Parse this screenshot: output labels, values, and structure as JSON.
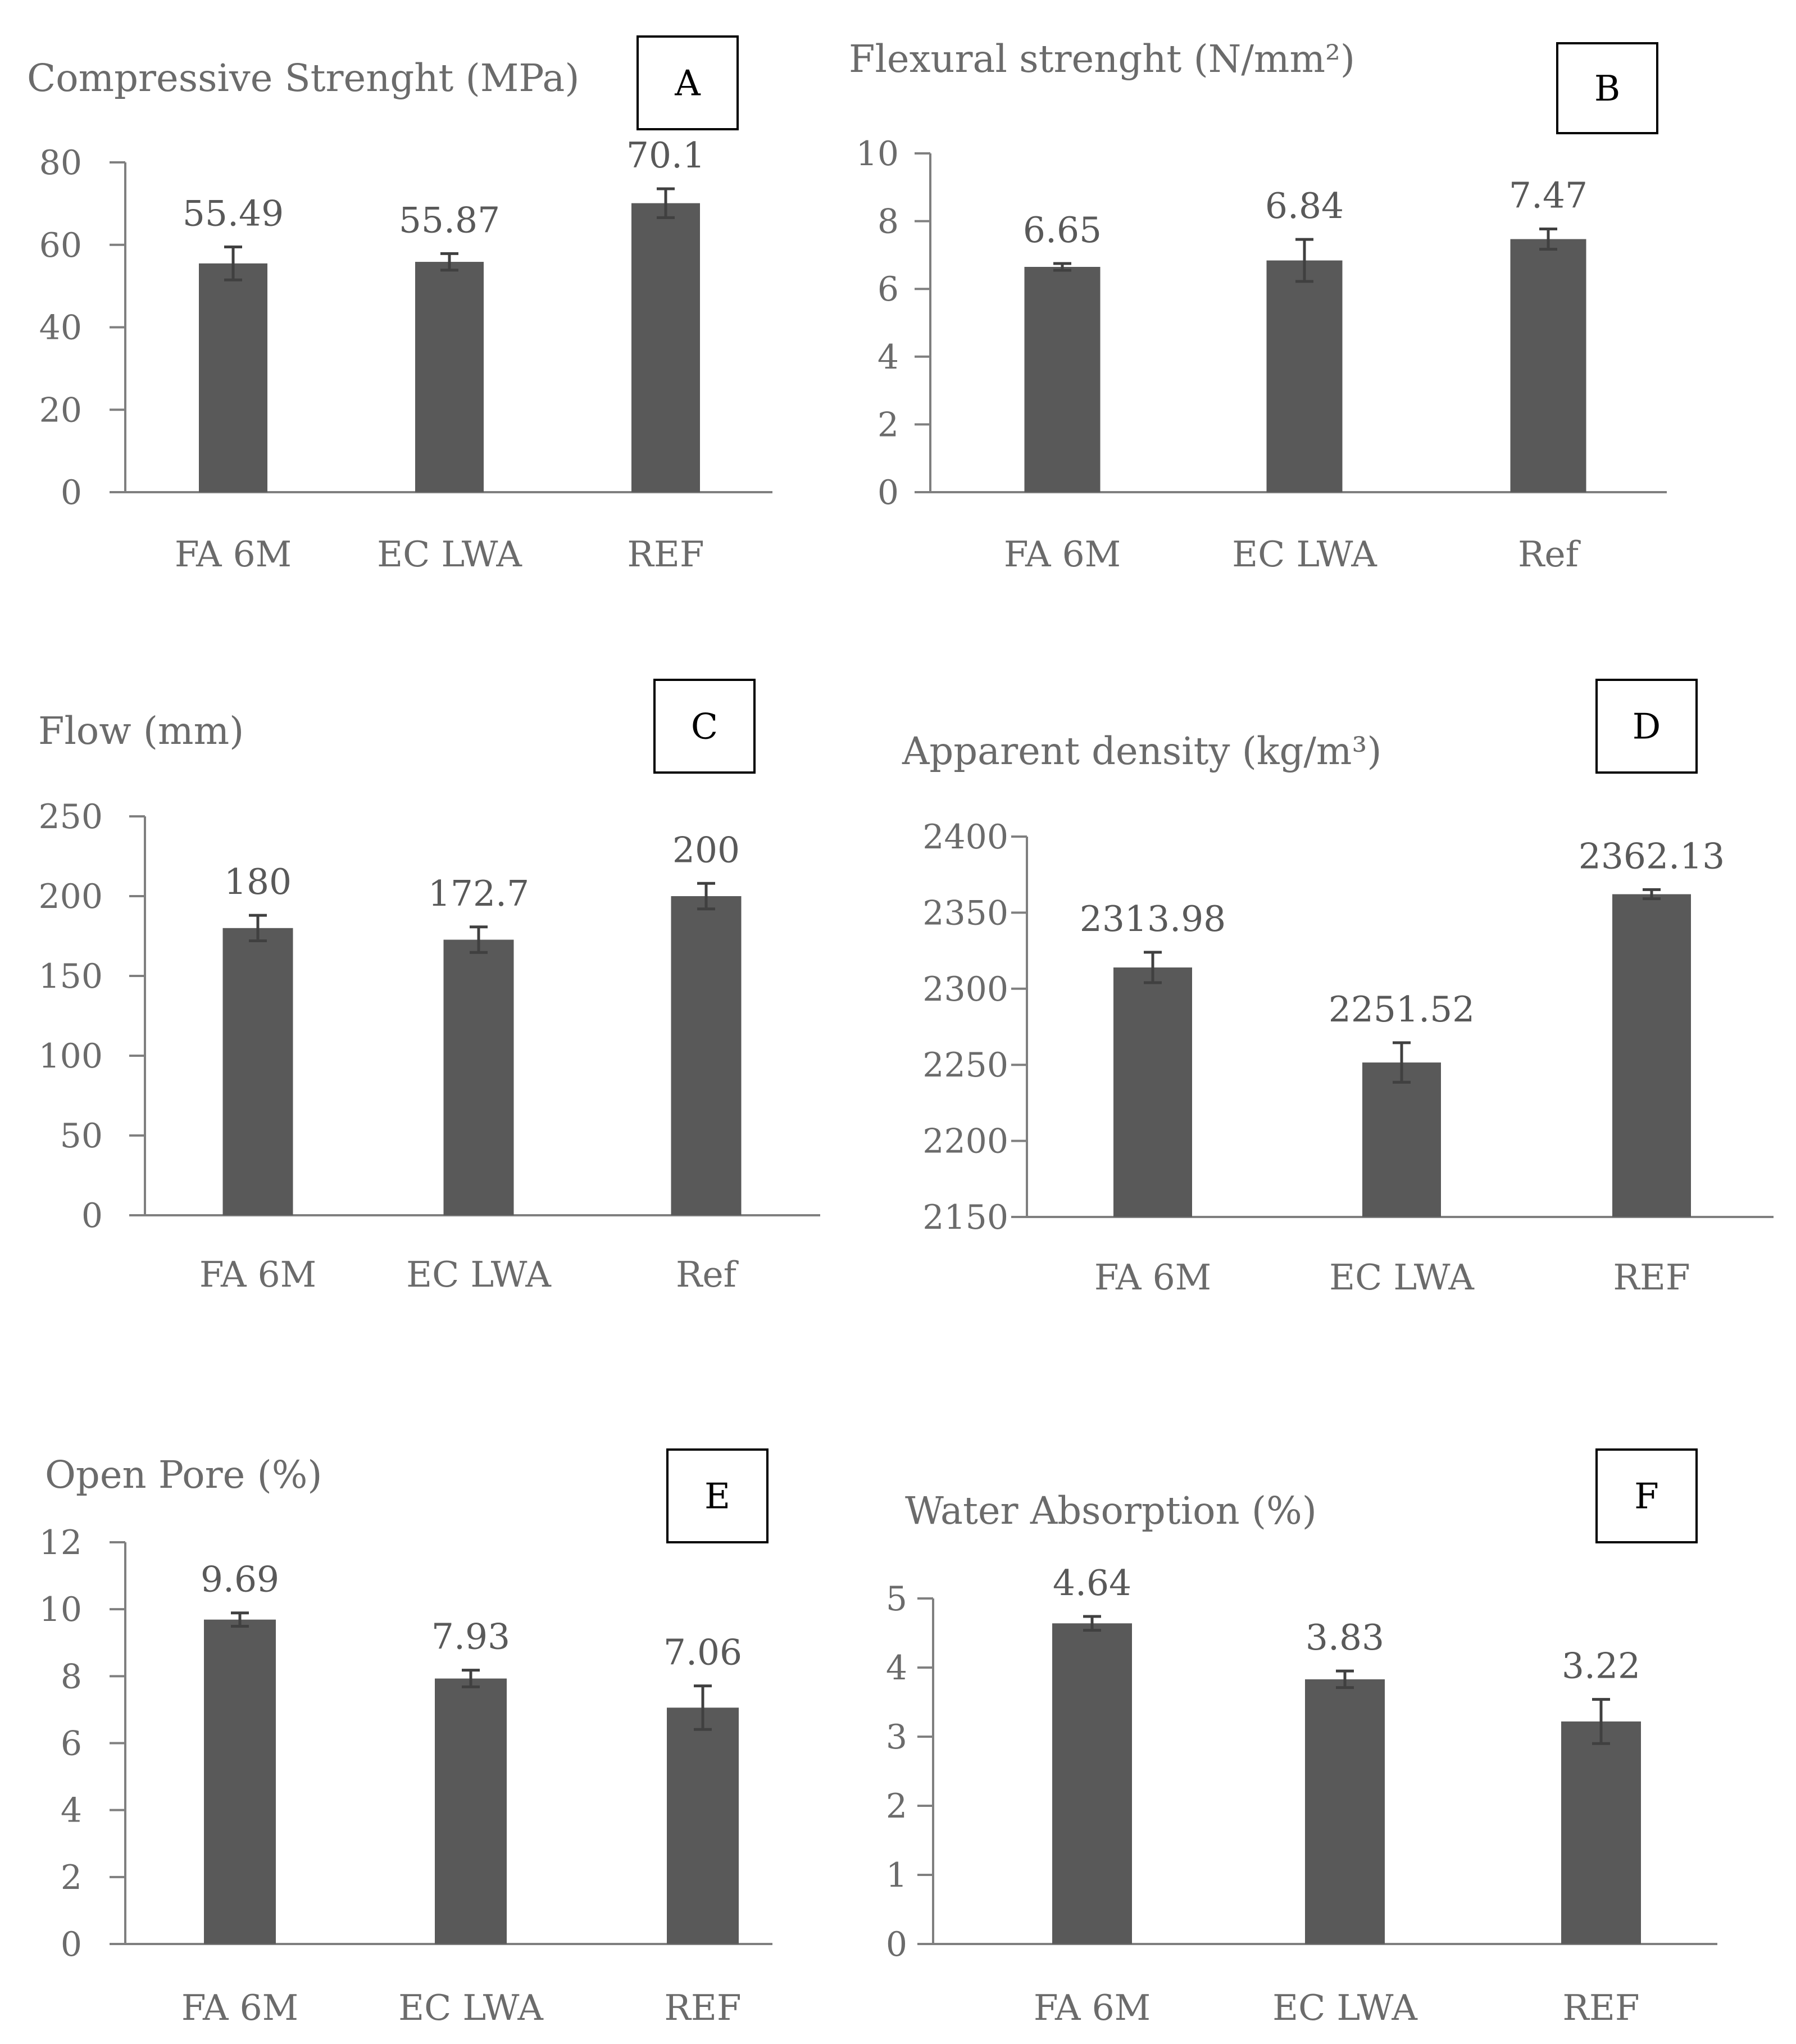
{
  "colors": {
    "bar": "#595959",
    "axis": "#7f7f7f",
    "text": "#6b6b6b"
  },
  "chart_data": [
    {
      "id": "A",
      "type": "bar",
      "title": "Compressive Strenght (MPa)",
      "letter": "A",
      "categories": [
        "FA 6M",
        "EC LWA",
        "REF"
      ],
      "values": [
        55.49,
        55.87,
        70.1
      ],
      "value_labels": [
        "55.49",
        "55.87",
        "70.1"
      ],
      "errors": [
        4,
        2,
        3.5
      ],
      "ylim": [
        0,
        80
      ],
      "yticks": [
        0,
        20,
        40,
        60,
        80
      ]
    },
    {
      "id": "B",
      "type": "bar",
      "title": "Flexural strenght (N/mm²)",
      "letter": "B",
      "categories": [
        "FA 6M",
        "EC LWA",
        "Ref"
      ],
      "values": [
        6.65,
        6.84,
        7.47
      ],
      "value_labels": [
        "6.65",
        "6.84",
        "7.47"
      ],
      "errors": [
        0.1,
        0.62,
        0.3
      ],
      "ylim": [
        0,
        10
      ],
      "yticks": [
        0,
        2,
        4,
        6,
        8,
        10
      ]
    },
    {
      "id": "C",
      "type": "bar",
      "title": "Flow (mm)",
      "letter": "C",
      "categories": [
        "FA 6M",
        "EC LWA",
        "Ref"
      ],
      "values": [
        180,
        172.7,
        200
      ],
      "value_labels": [
        "180",
        "172.7",
        "200"
      ],
      "errors": [
        8,
        8,
        8
      ],
      "ylim": [
        0,
        250
      ],
      "yticks": [
        0,
        50,
        100,
        150,
        200,
        250
      ]
    },
    {
      "id": "D",
      "type": "bar",
      "title": "Apparent density (kg/m³)",
      "letter": "D",
      "categories": [
        "FA 6M",
        "EC LWA",
        "REF"
      ],
      "values": [
        2313.98,
        2251.52,
        2362.13
      ],
      "value_labels": [
        "2313.98",
        "2251.52",
        "2362.13"
      ],
      "errors": [
        10,
        13,
        3
      ],
      "ylim": [
        2150,
        2400
      ],
      "yticks": [
        2150,
        2200,
        2250,
        2300,
        2350,
        2400
      ]
    },
    {
      "id": "E",
      "type": "bar",
      "title": "Open Pore (%)",
      "letter": "E",
      "categories": [
        "FA 6M",
        "EC LWA",
        "REF"
      ],
      "values": [
        9.69,
        7.93,
        7.06
      ],
      "value_labels": [
        "9.69",
        "7.93",
        "7.06"
      ],
      "errors": [
        0.2,
        0.25,
        0.65
      ],
      "ylim": [
        0,
        12
      ],
      "yticks": [
        0,
        2,
        4,
        6,
        8,
        10,
        12
      ]
    },
    {
      "id": "F",
      "type": "bar",
      "title": "Water Absorption (%)",
      "letter": "F",
      "categories": [
        "FA 6M",
        "EC LWA",
        "REF"
      ],
      "values": [
        4.64,
        3.83,
        3.22
      ],
      "value_labels": [
        "4.64",
        "3.83",
        "3.22"
      ],
      "errors": [
        0.1,
        0.12,
        0.32
      ],
      "ylim": [
        0,
        5
      ],
      "yticks": [
        0,
        1,
        2,
        3,
        4,
        5
      ]
    }
  ]
}
